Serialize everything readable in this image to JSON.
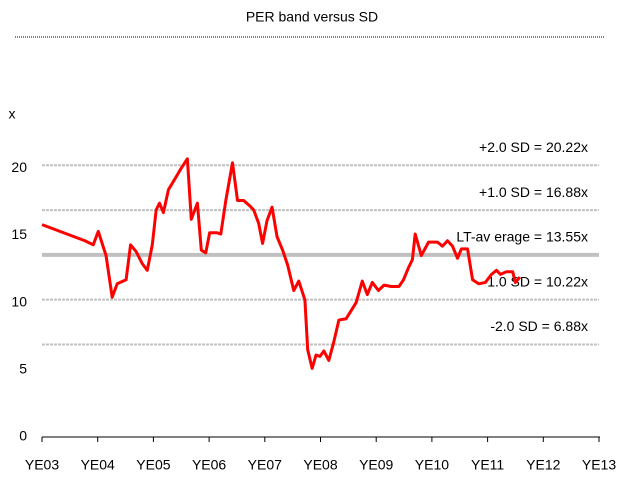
{
  "chart_data": {
    "type": "line",
    "title": "PER band versus SD",
    "y_label": "x",
    "xlim": [
      2003,
      2013
    ],
    "xticks": [
      {
        "value": 2003,
        "label": "YE03"
      },
      {
        "value": 2004,
        "label": "YE04"
      },
      {
        "value": 2005,
        "label": "YE05"
      },
      {
        "value": 2006,
        "label": "YE06"
      },
      {
        "value": 2007,
        "label": "YE07"
      },
      {
        "value": 2008,
        "label": "YE08"
      },
      {
        "value": 2009,
        "label": "YE09"
      },
      {
        "value": 2010,
        "label": "YE10"
      },
      {
        "value": 2011,
        "label": "YE11"
      },
      {
        "value": 2012,
        "label": "YE12"
      },
      {
        "value": 2013,
        "label": "YE13"
      }
    ],
    "ylim": [
      0,
      25
    ],
    "yticks": [
      0,
      5,
      10,
      15,
      20
    ],
    "bands": [
      {
        "label": "+2.0 SD = 20.22x",
        "value": 20.22,
        "style": "dashed"
      },
      {
        "label": "+1.0 SD = 16.88x",
        "value": 16.88,
        "style": "dashed"
      },
      {
        "label": "LT-av erage = 13.55x",
        "value": 13.55,
        "style": "solid"
      },
      {
        "label": "-1.0 SD = 10.22x",
        "value": 10.22,
        "style": "dashed"
      },
      {
        "label": "-2.0 SD = 6.88x",
        "value": 6.88,
        "style": "dashed"
      }
    ],
    "series": [
      {
        "color": "#ff0000",
        "x": [
          2003.0,
          2003.77,
          2003.92,
          2004.01,
          2004.15,
          2004.26,
          2004.35,
          2004.51,
          2004.59,
          2004.69,
          2004.8,
          2004.89,
          2004.98,
          2005.05,
          2005.11,
          2005.18,
          2005.27,
          2005.4,
          2005.5,
          2005.61,
          2005.68,
          2005.79,
          2005.86,
          2005.94,
          2006.01,
          2006.14,
          2006.21,
          2006.3,
          2006.42,
          2006.51,
          2006.62,
          2006.73,
          2006.8,
          2006.89,
          2006.96,
          2007.04,
          2007.13,
          2007.22,
          2007.32,
          2007.41,
          2007.52,
          2007.61,
          2007.72,
          2007.77,
          2007.85,
          2007.92,
          2007.99,
          2008.06,
          2008.15,
          2008.24,
          2008.33,
          2008.46,
          2008.55,
          2008.64,
          2008.75,
          2008.84,
          2008.93,
          2009.04,
          2009.14,
          2009.27,
          2009.41,
          2009.49,
          2009.58,
          2009.65,
          2009.7,
          2009.81,
          2009.94,
          2010.1,
          2010.19,
          2010.28,
          2010.37,
          2010.46,
          2010.53,
          2010.64,
          2010.73,
          2010.84,
          2010.96,
          2011.07,
          2011.16,
          2011.23,
          2011.34,
          2011.45,
          2011.5,
          2011.58
        ],
        "values": [
          15.8,
          14.6,
          14.3,
          15.3,
          13.5,
          10.4,
          11.4,
          11.7,
          14.3,
          13.8,
          12.9,
          12.4,
          14.3,
          16.9,
          17.4,
          16.7,
          18.4,
          19.3,
          20.0,
          20.7,
          16.2,
          17.4,
          13.9,
          13.7,
          15.2,
          15.2,
          15.1,
          17.6,
          20.4,
          17.6,
          17.6,
          17.2,
          16.9,
          15.9,
          14.4,
          16.1,
          17.1,
          14.9,
          13.9,
          12.8,
          10.9,
          11.6,
          10.2,
          6.5,
          5.1,
          6.1,
          6.0,
          6.4,
          5.7,
          7.1,
          8.7,
          8.8,
          9.4,
          10.0,
          11.6,
          10.6,
          11.5,
          10.9,
          11.3,
          11.2,
          11.2,
          11.7,
          12.6,
          13.2,
          15.1,
          13.5,
          14.5,
          14.5,
          14.2,
          14.6,
          14.2,
          13.3,
          14.0,
          14.0,
          11.7,
          11.4,
          11.5,
          12.1,
          12.4,
          12.1,
          12.3,
          12.3,
          11.5,
          11.9
        ]
      }
    ]
  }
}
